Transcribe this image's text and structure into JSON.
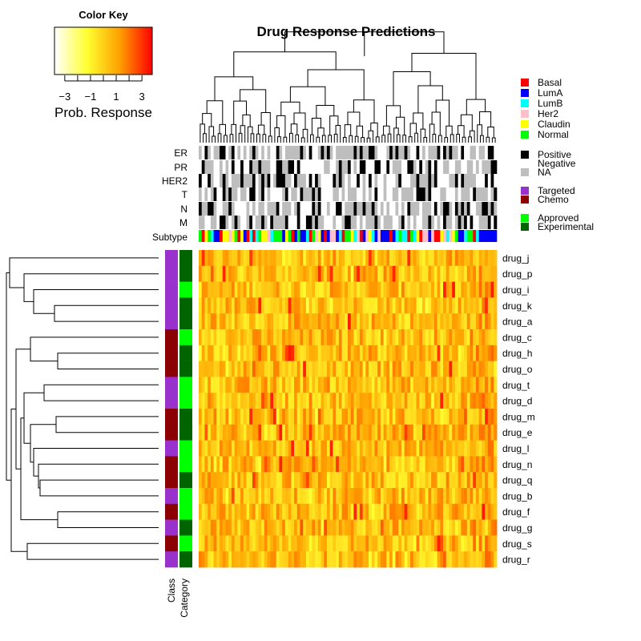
{
  "chart_data": {
    "type": "heatmap",
    "title": "Drug Response Predictions",
    "color_key": {
      "title": "Color Key",
      "label": "Prob. Response",
      "range": [
        -3.8,
        3.8
      ],
      "ticks": [
        -3,
        -2,
        -1,
        0,
        1,
        2,
        3
      ],
      "tick_labels": [
        "−3",
        "−1",
        "1",
        "3"
      ],
      "tick_label_values": [
        -3,
        -1,
        1,
        3
      ],
      "palette": [
        "#ffffff",
        "#ffff30",
        "#ffa000",
        "#ff0000"
      ]
    },
    "column_annotation_labels": [
      "ER",
      "PR",
      "HER2",
      "T",
      "N",
      "M",
      "Subtype"
    ],
    "row_annotation_labels": [
      "Class",
      "Category"
    ],
    "rows": [
      "drug_j",
      "drug_p",
      "drug_i",
      "drug_k",
      "drug_a",
      "drug_c",
      "drug_h",
      "drug_o",
      "drug_t",
      "drug_d",
      "drug_m",
      "drug_e",
      "drug_l",
      "drug_n",
      "drug_q",
      "drug_b",
      "drug_f",
      "drug_g",
      "drug_s",
      "drug_r"
    ],
    "row_class": [
      "Targeted",
      "Targeted",
      "Targeted",
      "Targeted",
      "Targeted",
      "Chemo",
      "Chemo",
      "Chemo",
      "Targeted",
      "Targeted",
      "Chemo",
      "Chemo",
      "Targeted",
      "Chemo",
      "Chemo",
      "Targeted",
      "Chemo",
      "Targeted",
      "Chemo",
      "Targeted"
    ],
    "row_category": [
      "Experimental",
      "Experimental",
      "Approved",
      "Experimental",
      "Experimental",
      "Approved",
      "Experimental",
      "Experimental",
      "Approved",
      "Approved",
      "Experimental",
      "Experimental",
      "Approved",
      "Approved",
      "Experimental",
      "Approved",
      "Approved",
      "Experimental",
      "Approved",
      "Experimental"
    ],
    "n_columns": 100,
    "legend": {
      "subtype": [
        {
          "name": "Basal",
          "color": "#ff0000"
        },
        {
          "name": "LumA",
          "color": "#0000ff"
        },
        {
          "name": "LumB",
          "color": "#00ffff"
        },
        {
          "name": "Her2",
          "color": "#ffc0cb"
        },
        {
          "name": "Claudin",
          "color": "#ffff00"
        },
        {
          "name": "Normal",
          "color": "#00ff00"
        }
      ],
      "status": [
        {
          "name": "Positive",
          "color": "#000000"
        },
        {
          "name": "Negative",
          "color": "#ffffff"
        },
        {
          "name": "NA",
          "color": "#bebebe"
        }
      ],
      "class": [
        {
          "name": "Targeted",
          "color": "#9932cc"
        },
        {
          "name": "Chemo",
          "color": "#8b0000"
        }
      ],
      "category": [
        {
          "name": "Approved",
          "color": "#00ff00"
        },
        {
          "name": "Experimental",
          "color": "#006400"
        }
      ]
    }
  }
}
